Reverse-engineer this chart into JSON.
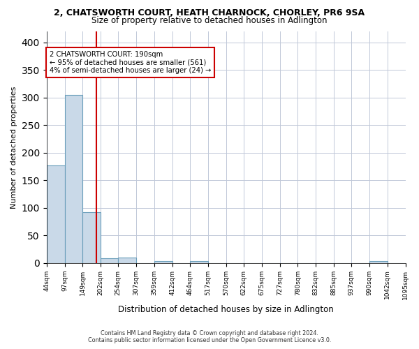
{
  "title1": "2, CHATSWORTH COURT, HEATH CHARNOCK, CHORLEY, PR6 9SA",
  "title2": "Size of property relative to detached houses in Adlington",
  "xlabel": "Distribution of detached houses by size in Adlington",
  "ylabel": "Number of detached properties",
  "footer1": "Contains HM Land Registry data © Crown copyright and database right 2024.",
  "footer2": "Contains public sector information licensed under the Open Government Licence v3.0.",
  "annotation_line1": "2 CHATSWORTH COURT: 190sqm",
  "annotation_line2": "← 95% of detached houses are smaller (561)",
  "annotation_line3": "4% of semi-detached houses are larger (24) →",
  "property_size": 190,
  "bar_edges": [
    44,
    97,
    149,
    202,
    254,
    307,
    359,
    412,
    464,
    517,
    570,
    622,
    675,
    727,
    780,
    832,
    885,
    937,
    990,
    1042,
    1095
  ],
  "bar_heights": [
    177,
    305,
    92,
    9,
    10,
    0,
    3,
    0,
    4,
    0,
    0,
    0,
    0,
    0,
    0,
    0,
    0,
    0,
    3,
    0
  ],
  "bar_color": "#c9d9e8",
  "bar_edge_color": "#6a9eba",
  "vline_color": "#cc0000",
  "vline_x": 190,
  "annotation_box_color": "#cc0000",
  "background_color": "#ffffff",
  "grid_color": "#c0c8d8",
  "ylim": [
    0,
    420
  ],
  "xlim": [
    44,
    1095
  ]
}
